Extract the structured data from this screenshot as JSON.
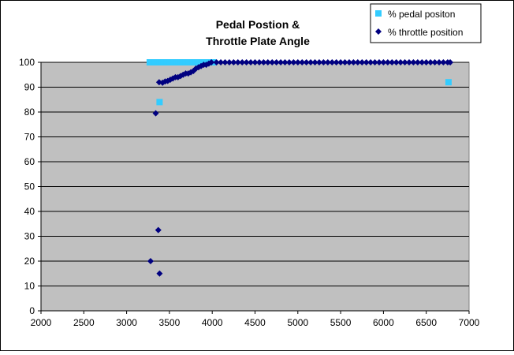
{
  "chart_data": {
    "type": "scatter",
    "title_lines": [
      "Pedal Postion &",
      "Throttle Plate Angle"
    ],
    "xlabel": "",
    "ylabel": "",
    "xlim": [
      2000,
      7000
    ],
    "ylim": [
      0,
      100
    ],
    "x_ticks": [
      2000,
      2500,
      3000,
      3500,
      4000,
      4500,
      5000,
      5500,
      6000,
      6500,
      7000
    ],
    "y_ticks": [
      0,
      10,
      20,
      30,
      40,
      50,
      60,
      70,
      80,
      90,
      100
    ],
    "grid": "horizontal",
    "legend_position": "top-right",
    "background_color": "#c0c0c0",
    "series": [
      {
        "name": "% pedal positon",
        "marker": "square",
        "color": "#33ccff",
        "points": [
          [
            3270,
            100
          ],
          [
            3290,
            100
          ],
          [
            3310,
            100
          ],
          [
            3330,
            100
          ],
          [
            3350,
            100
          ],
          [
            3370,
            100
          ],
          [
            3390,
            100
          ],
          [
            3410,
            100
          ],
          [
            3430,
            100
          ],
          [
            3450,
            100
          ],
          [
            3470,
            100
          ],
          [
            3490,
            100
          ],
          [
            3510,
            100
          ],
          [
            3530,
            100
          ],
          [
            3550,
            100
          ],
          [
            3570,
            100
          ],
          [
            3590,
            100
          ],
          [
            3610,
            100
          ],
          [
            3630,
            100
          ],
          [
            3650,
            100
          ],
          [
            3670,
            100
          ],
          [
            3690,
            100
          ],
          [
            3710,
            100
          ],
          [
            3730,
            100
          ],
          [
            3750,
            100
          ],
          [
            3770,
            100
          ],
          [
            3790,
            100
          ],
          [
            3810,
            100
          ],
          [
            3830,
            100
          ],
          [
            3850,
            100
          ],
          [
            3870,
            100
          ],
          [
            3890,
            100
          ],
          [
            3910,
            100
          ],
          [
            3930,
            100
          ],
          [
            3950,
            100
          ],
          [
            3970,
            100
          ],
          [
            3990,
            100
          ],
          [
            4010,
            100
          ],
          [
            3385,
            84
          ],
          [
            6760,
            92
          ]
        ]
      },
      {
        "name": "% throttle position",
        "marker": "diamond",
        "color": "#000080",
        "points": [
          [
            3280,
            20
          ],
          [
            3340,
            79.5
          ],
          [
            3370,
            32.5
          ],
          [
            3385,
            15
          ],
          [
            3380,
            92
          ],
          [
            3420,
            91.8
          ],
          [
            3450,
            92.3
          ],
          [
            3480,
            92.5
          ],
          [
            3510,
            93
          ],
          [
            3540,
            93.5
          ],
          [
            3570,
            94
          ],
          [
            3600,
            94
          ],
          [
            3630,
            94.5
          ],
          [
            3660,
            95
          ],
          [
            3690,
            95.5
          ],
          [
            3720,
            95.5
          ],
          [
            3750,
            96
          ],
          [
            3780,
            96.5
          ],
          [
            3810,
            97.5
          ],
          [
            3840,
            98
          ],
          [
            3870,
            98.5
          ],
          [
            3900,
            99
          ],
          [
            3930,
            99
          ],
          [
            3960,
            99.5
          ],
          [
            3990,
            100
          ],
          [
            4050,
            100
          ],
          [
            4100,
            100
          ],
          [
            4150,
            100
          ],
          [
            4200,
            100
          ],
          [
            4250,
            100
          ],
          [
            4300,
            100
          ],
          [
            4350,
            100
          ],
          [
            4400,
            100
          ],
          [
            4450,
            100
          ],
          [
            4500,
            100
          ],
          [
            4550,
            100
          ],
          [
            4600,
            100
          ],
          [
            4650,
            100
          ],
          [
            4700,
            100
          ],
          [
            4750,
            100
          ],
          [
            4800,
            100
          ],
          [
            4850,
            100
          ],
          [
            4900,
            100
          ],
          [
            4950,
            100
          ],
          [
            5000,
            100
          ],
          [
            5050,
            100
          ],
          [
            5100,
            100
          ],
          [
            5150,
            100
          ],
          [
            5200,
            100
          ],
          [
            5250,
            100
          ],
          [
            5300,
            100
          ],
          [
            5350,
            100
          ],
          [
            5400,
            100
          ],
          [
            5450,
            100
          ],
          [
            5500,
            100
          ],
          [
            5550,
            100
          ],
          [
            5600,
            100
          ],
          [
            5650,
            100
          ],
          [
            5700,
            100
          ],
          [
            5750,
            100
          ],
          [
            5800,
            100
          ],
          [
            5850,
            100
          ],
          [
            5900,
            100
          ],
          [
            5950,
            100
          ],
          [
            6000,
            100
          ],
          [
            6050,
            100
          ],
          [
            6100,
            100
          ],
          [
            6150,
            100
          ],
          [
            6200,
            100
          ],
          [
            6250,
            100
          ],
          [
            6300,
            100
          ],
          [
            6350,
            100
          ],
          [
            6400,
            100
          ],
          [
            6450,
            100
          ],
          [
            6500,
            100
          ],
          [
            6550,
            100
          ],
          [
            6600,
            100
          ],
          [
            6650,
            100
          ],
          [
            6700,
            100
          ],
          [
            6750,
            100
          ],
          [
            6780,
            100
          ]
        ]
      }
    ]
  }
}
